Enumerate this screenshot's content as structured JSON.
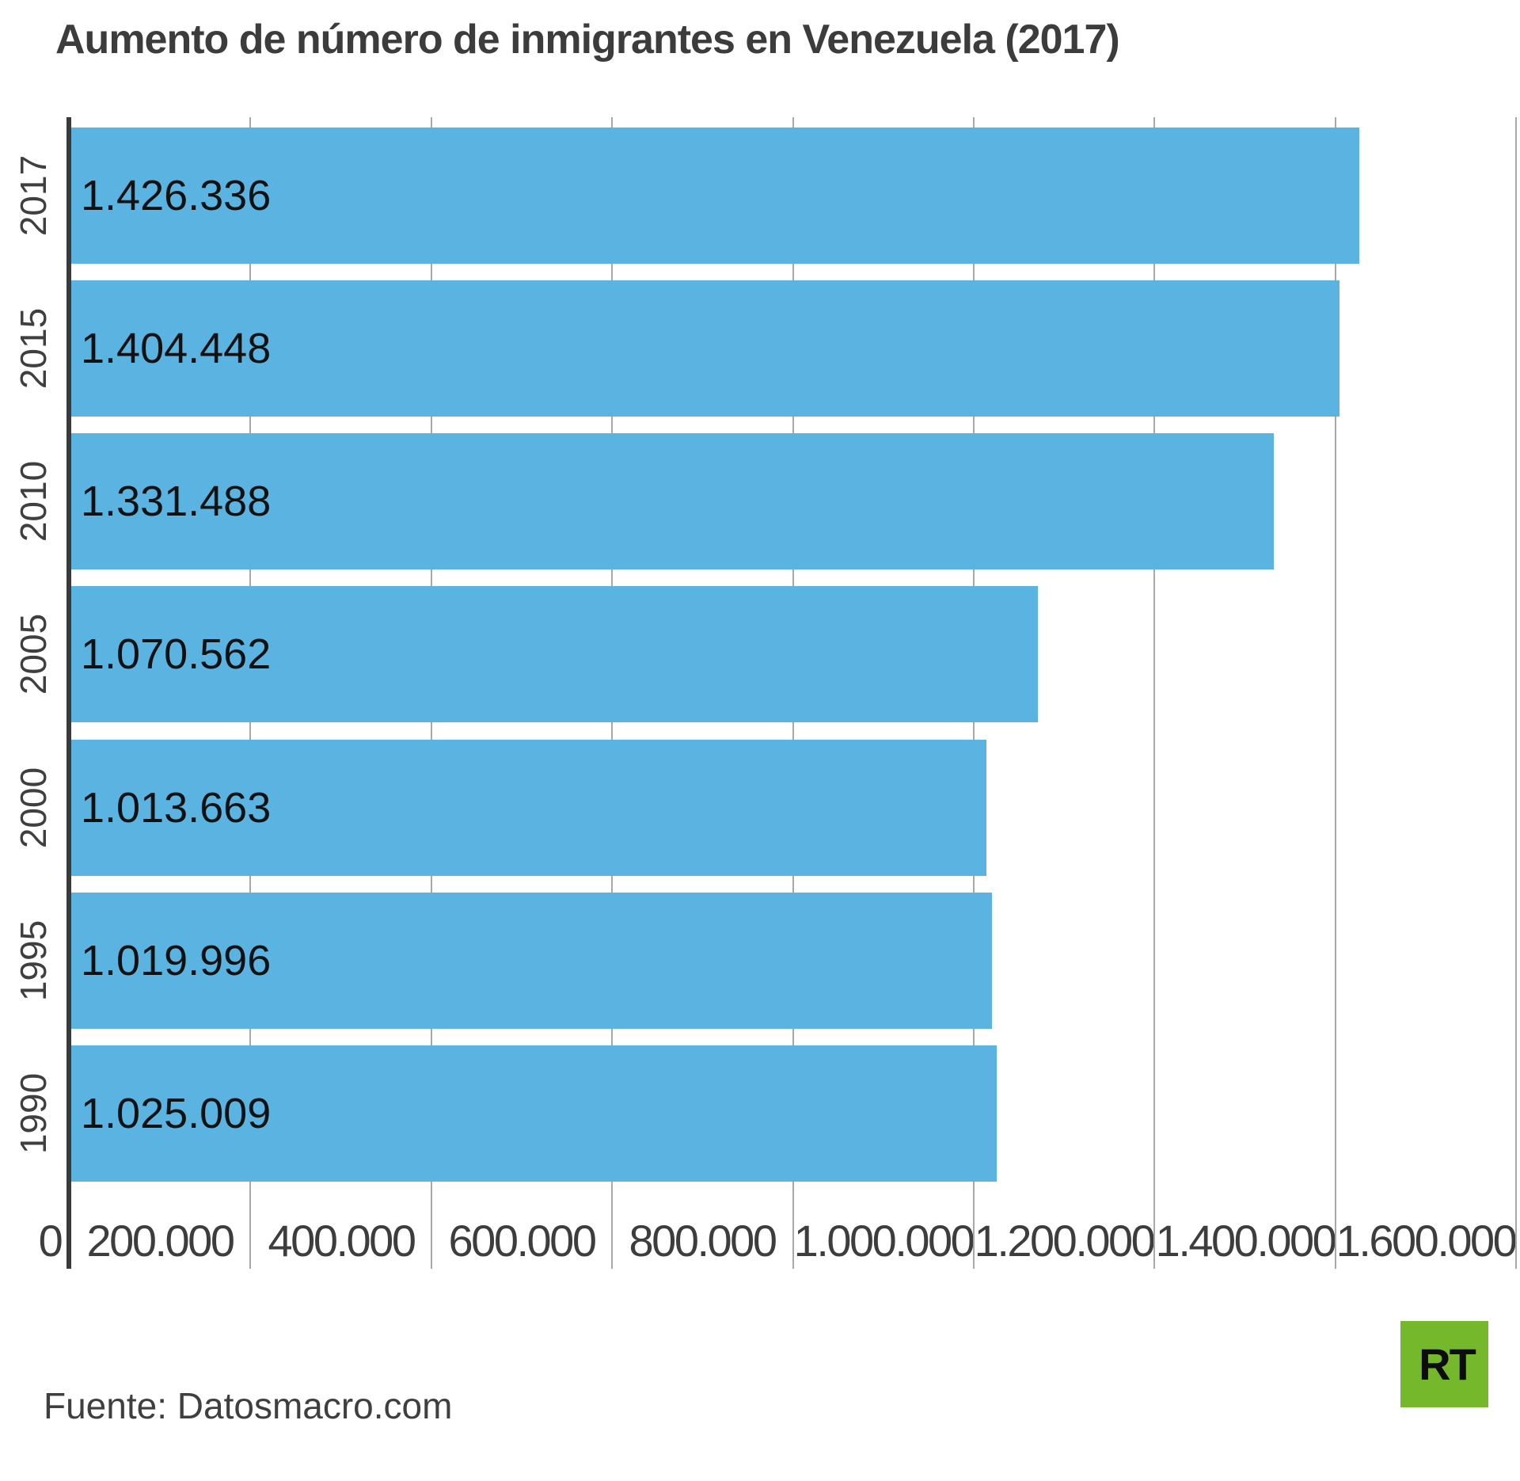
{
  "title": "Aumento de número de inmigrantes en Venezuela (2017)",
  "source": "Fuente: Datosmacro.com",
  "logo": {
    "text": "RT",
    "bg_color": "#76b82b"
  },
  "colors": {
    "bar": "#5ab3e0",
    "axis": "#3a3a3a",
    "gridline": "#a8a8a8",
    "tick_text": "#3d3d3d",
    "value_text": "#111111"
  },
  "chart_data": {
    "type": "bar",
    "orientation": "horizontal",
    "title": "Aumento de número de inmigrantes en Venezuela (2017)",
    "categories": [
      "2017",
      "2015",
      "2010",
      "2005",
      "2000",
      "1995",
      "1990"
    ],
    "values": [
      1426336,
      1404448,
      1331488,
      1070562,
      1013663,
      1019996,
      1025009
    ],
    "value_labels": [
      "1.426.336",
      "1.404.448",
      "1.331.488",
      "1.070.562",
      "1.013.663",
      "1.019.996",
      "1.025.009"
    ],
    "xlabel": "",
    "ylabel": "",
    "xlim": [
      0,
      1600000
    ],
    "xticks": [
      0,
      200000,
      400000,
      600000,
      800000,
      1000000,
      1200000,
      1400000,
      1600000
    ],
    "xtick_labels": [
      "0",
      "200.000",
      "400.000",
      "600.000",
      "800.000",
      "1.000.000",
      "1.200.000",
      "1.400.000",
      "1.600.000"
    ],
    "grid": true,
    "legend": false
  }
}
